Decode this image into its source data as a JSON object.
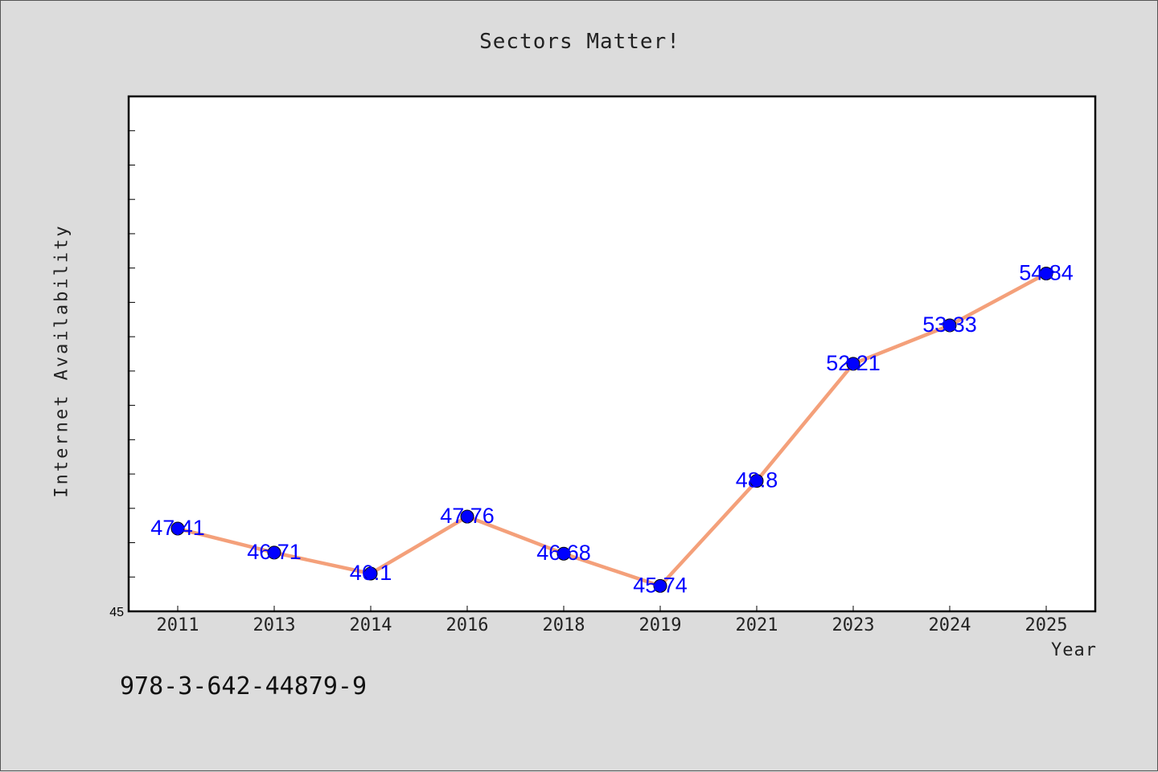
{
  "chart_data": {
    "type": "line",
    "title": "Sectors Matter!",
    "xlabel": "Year",
    "ylabel": "Internet Availability",
    "categories": [
      "2011",
      "2013",
      "2014",
      "2016",
      "2018",
      "2019",
      "2021",
      "2023",
      "2024",
      "2025"
    ],
    "series": [
      {
        "values": [
          47.41,
          46.71,
          46.1,
          47.76,
          46.68,
          45.74,
          48.8,
          52.21,
          53.33,
          54.84
        ],
        "data_labels": [
          "47.41",
          "46.71",
          "46.1",
          "47.76",
          "46.68",
          "45.74",
          "48.8",
          "52.21",
          "53.33",
          "54.84"
        ],
        "line_color": "#f4a07a",
        "marker_color": "#0000ff"
      }
    ],
    "ylim": [
      45,
      60
    ],
    "y_tick_labels": [
      "45"
    ],
    "grid": false,
    "legend": "none",
    "plot_background": "#ffffff",
    "figure_background": "#dcdcdc",
    "label_color": "#0000ff"
  },
  "footer": {
    "code": "978-3-642-44879-9"
  }
}
